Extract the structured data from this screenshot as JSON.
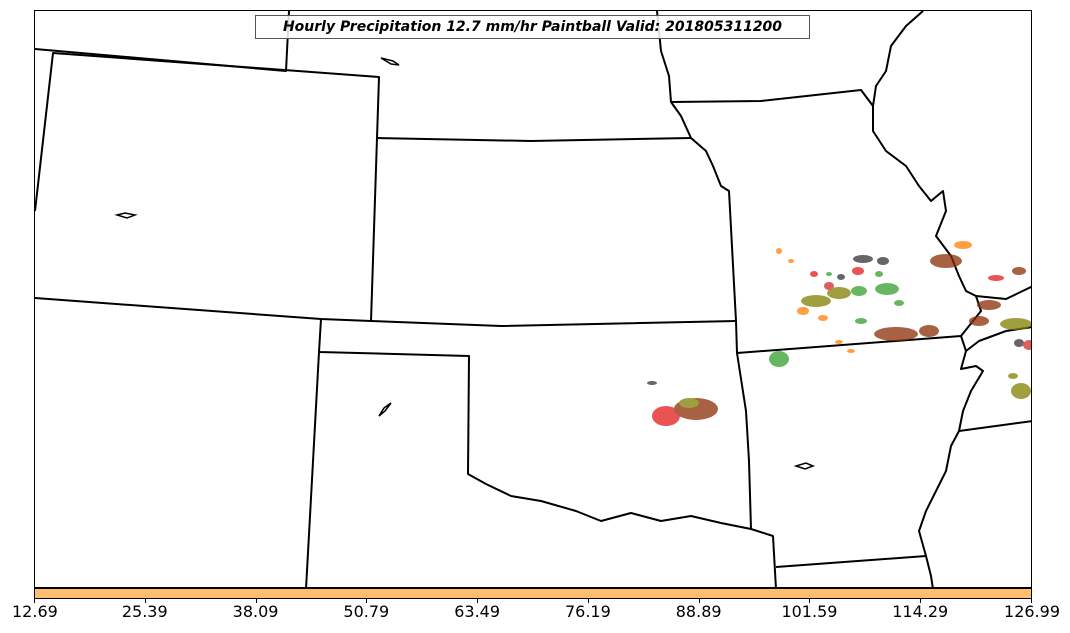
{
  "title": "Hourly Precipitation 12.7 mm/hr Paintball Valid: 201805311200",
  "colorbar": {
    "color": "#fdbf6f",
    "ticks": [
      "12.69",
      "25.39",
      "38.09",
      "50.79",
      "63.49",
      "76.19",
      "88.89",
      "101.59",
      "114.29",
      "126.99"
    ]
  },
  "map": {
    "boundary_color": "#000000",
    "paintball_colors": [
      "#d62728",
      "#8c2d04",
      "#33a02c",
      "#ff7f00",
      "#808000",
      "#333333",
      "#e31a1c"
    ]
  }
}
